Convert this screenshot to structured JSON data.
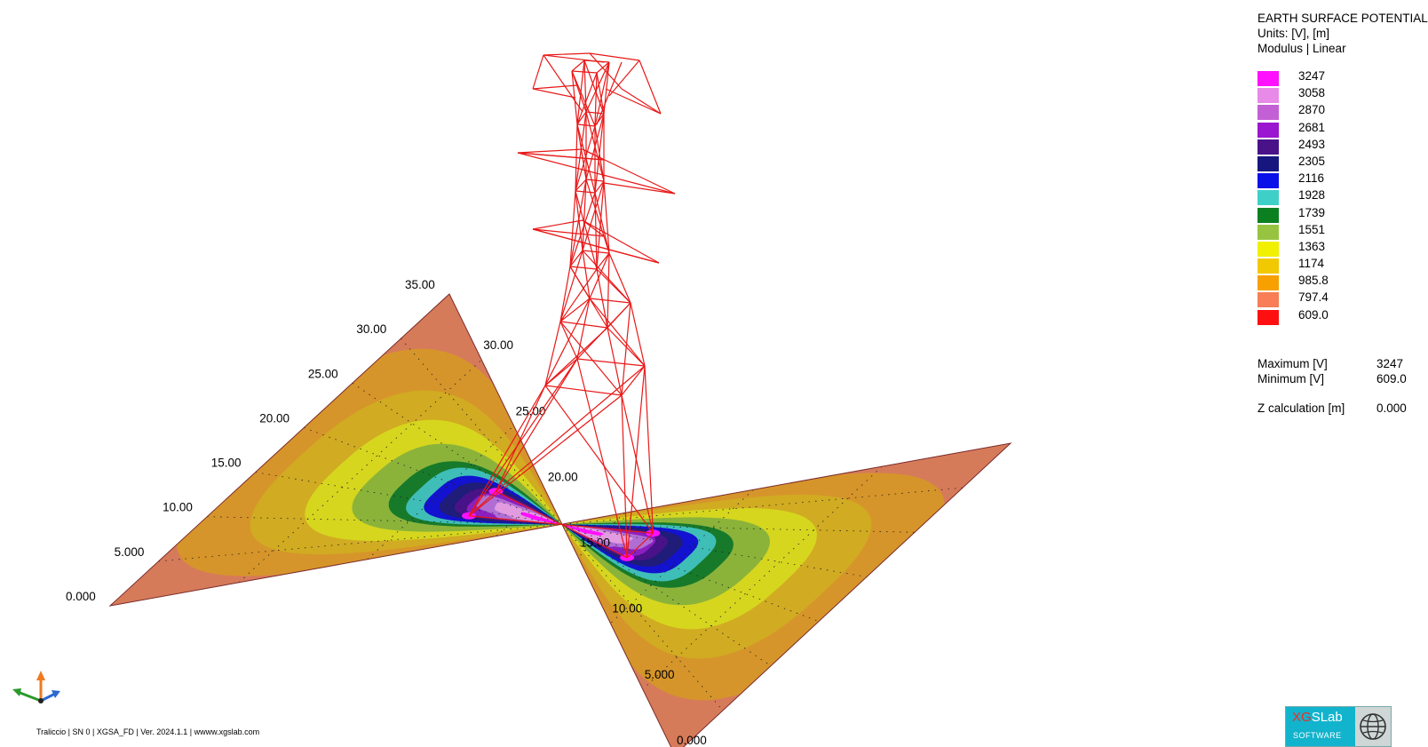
{
  "legend": {
    "title": "EARTH SURFACE POTENTIAL",
    "units": "Units: [V], [m]",
    "mode": "Modulus | Linear",
    "levels": [
      {
        "value": "3247",
        "color": "#ff10ff"
      },
      {
        "value": "3058",
        "color": "#e88ae8"
      },
      {
        "value": "2870",
        "color": "#c460d6"
      },
      {
        "value": "2681",
        "color": "#9a16cf"
      },
      {
        "value": "2493",
        "color": "#4a1289"
      },
      {
        "value": "2305",
        "color": "#16167e"
      },
      {
        "value": "2116",
        "color": "#0a10e8"
      },
      {
        "value": "1928",
        "color": "#3ed0c8"
      },
      {
        "value": "1739",
        "color": "#0c8020"
      },
      {
        "value": "1551",
        "color": "#96c440"
      },
      {
        "value": "1363",
        "color": "#f0f000"
      },
      {
        "value": "1174",
        "color": "#f2c800"
      },
      {
        "value": "985.8",
        "color": "#f7a000"
      },
      {
        "value": "797.4",
        "color": "#f77e56"
      },
      {
        "value": "609.0",
        "color": "#ff1010"
      }
    ],
    "stats": [
      {
        "label": "Maximum [V]",
        "value": "3247"
      },
      {
        "label": "Minimum [V]",
        "value": "609.0"
      },
      {
        "label": "Z calculation [m]",
        "value": "0.000"
      }
    ]
  },
  "chart_data": {
    "type": "heatmap",
    "title": "EARTH SURFACE POTENTIAL",
    "units": "Units: [V], [m]",
    "mode": "Modulus | Linear",
    "x_ticks": [
      "0.000",
      "5.000",
      "10.00",
      "15.00",
      "20.00",
      "25.00",
      "30.00"
    ],
    "y_ticks": [
      "0.000",
      "5.000",
      "10.00",
      "15.00",
      "20.00",
      "25.00",
      "30.00",
      "35.00"
    ],
    "xlim": [
      0,
      35
    ],
    "ylim": [
      0,
      35
    ],
    "z_calculation_m": 0.0,
    "max_V": 3247,
    "min_V": 609.0,
    "contour_levels_V": [
      3247,
      3058,
      2870,
      2681,
      2493,
      2305,
      2116,
      1928,
      1739,
      1551,
      1363,
      1174,
      985.8,
      797.4,
      609.0
    ],
    "band_colors": [
      "#d41f1f",
      "#d67b5a",
      "#d6952a",
      "#d1ab22",
      "#d6d61f",
      "#8bb33a",
      "#177a2a",
      "#3fbeb8",
      "#1212d0",
      "#1f1c7a",
      "#4a1289",
      "#8b1fc0",
      "#b06ed4",
      "#e29ae0",
      "#ff10ff"
    ],
    "grid": true,
    "legend": "right",
    "overlay": "lattice transmission tower, red wireframe, four footings"
  },
  "footer": "Traliccio | SN 0 | XGSA_FD | Ver. 2024.1.1 | wwww.xgslab.com",
  "logo": {
    "brand_a": "XG",
    "brand_b": "SLab",
    "sub": "SOFTWARE"
  }
}
